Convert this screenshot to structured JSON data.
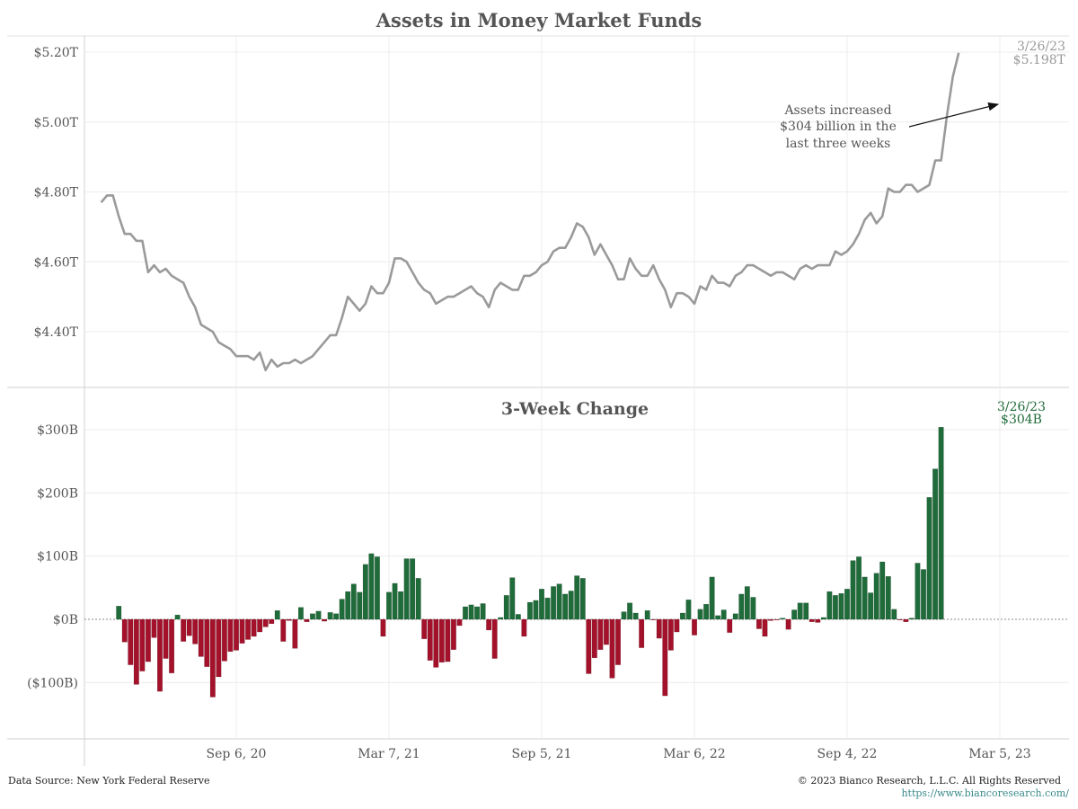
{
  "footer": {
    "source": "Data Source: New York Federal Reserve",
    "copyright": "© 2023 Bianco Research, L.L.C. All Rights Reserved",
    "url": "https://www.biancoresearch.com/"
  },
  "colors": {
    "line": "#9a9a9a",
    "positive": "#1f6b3a",
    "negative": "#a3122a",
    "grid": "#ececec",
    "axis": "#cccccc"
  },
  "chart_data": [
    {
      "type": "line",
      "title": "Assets in Money Market Funds",
      "ylabel": "",
      "ylim": [
        4.27,
        5.24
      ],
      "yticks": [
        4.4,
        4.6,
        4.8,
        5.0,
        5.2
      ],
      "ytick_labels": [
        "$4.40T",
        "$4.60T",
        "$4.80T",
        "$5.00T",
        "$5.20T"
      ],
      "grid": true,
      "start_date": "2020-03-29",
      "freq": "weekly",
      "values": [
        4.77,
        4.79,
        4.79,
        4.73,
        4.68,
        4.68,
        4.66,
        4.66,
        4.57,
        4.59,
        4.57,
        4.58,
        4.56,
        4.55,
        4.54,
        4.5,
        4.47,
        4.42,
        4.41,
        4.4,
        4.37,
        4.36,
        4.35,
        4.33,
        4.33,
        4.33,
        4.32,
        4.34,
        4.29,
        4.32,
        4.3,
        4.31,
        4.31,
        4.32,
        4.31,
        4.32,
        4.33,
        4.35,
        4.37,
        4.39,
        4.39,
        4.44,
        4.5,
        4.48,
        4.46,
        4.48,
        4.53,
        4.51,
        4.51,
        4.54,
        4.61,
        4.61,
        4.6,
        4.57,
        4.54,
        4.52,
        4.51,
        4.48,
        4.49,
        4.5,
        4.5,
        4.51,
        4.52,
        4.53,
        4.51,
        4.5,
        4.47,
        4.52,
        4.54,
        4.53,
        4.52,
        4.52,
        4.56,
        4.56,
        4.57,
        4.59,
        4.6,
        4.63,
        4.64,
        4.64,
        4.67,
        4.71,
        4.7,
        4.67,
        4.62,
        4.65,
        4.62,
        4.59,
        4.55,
        4.55,
        4.61,
        4.58,
        4.56,
        4.56,
        4.59,
        4.55,
        4.52,
        4.47,
        4.51,
        4.51,
        4.5,
        4.48,
        4.53,
        4.52,
        4.56,
        4.54,
        4.54,
        4.53,
        4.56,
        4.57,
        4.59,
        4.59,
        4.58,
        4.57,
        4.56,
        4.57,
        4.57,
        4.56,
        4.55,
        4.58,
        4.59,
        4.58,
        4.59,
        4.59,
        4.59,
        4.63,
        4.62,
        4.63,
        4.65,
        4.68,
        4.72,
        4.74,
        4.71,
        4.73,
        4.81,
        4.8,
        4.8,
        4.82,
        4.82,
        4.8,
        4.81,
        4.82,
        4.89,
        4.89,
        5.02,
        5.13,
        5.198
      ],
      "xtick_labels": [
        "Sep 6, 20",
        "Mar 7, 21",
        "Sep 5, 21",
        "Mar 6, 22",
        "Sep 4, 22",
        "Mar 5, 23"
      ],
      "xtick_dates": [
        "2020-09-06",
        "2021-03-07",
        "2021-09-05",
        "2022-03-06",
        "2022-09-04",
        "2023-03-05"
      ],
      "end_label_date": "3/26/23",
      "end_label_value": "$5.198T",
      "annotation": [
        "Assets increased",
        "$304 billion in the",
        "last three weeks"
      ]
    },
    {
      "type": "bar",
      "title": "3-Week Change",
      "ylim": [
        -145,
        350
      ],
      "yticks": [
        -100,
        0,
        100,
        200,
        300
      ],
      "ytick_labels": [
        "($100B)",
        "$0B",
        "$100B",
        "$200B",
        "$300B"
      ],
      "grid": true,
      "start_date": "2020-04-19",
      "freq": "weekly",
      "values": [
        21,
        -36,
        -72,
        -103,
        -82,
        -67,
        -29,
        -114,
        -62,
        -85,
        7,
        -35,
        -26,
        -39,
        -59,
        -75,
        -123,
        -91,
        -66,
        -51,
        -49,
        -38,
        -32,
        -27,
        -20,
        -12,
        -7,
        14,
        -35,
        -2,
        -46,
        19,
        -4,
        9,
        13,
        -3,
        11,
        9,
        32,
        44,
        56,
        43,
        87,
        104,
        99,
        -27,
        43,
        57,
        44,
        96,
        96,
        65,
        -31,
        -65,
        -76,
        -68,
        -67,
        -48,
        -10,
        20,
        23,
        20,
        25,
        -17,
        -62,
        3,
        38,
        66,
        8,
        -27,
        27,
        30,
        48,
        34,
        52,
        56,
        40,
        45,
        69,
        65,
        -86,
        -61,
        -48,
        -40,
        -93,
        -72,
        12,
        26,
        10,
        -45,
        14,
        -1,
        -30,
        -121,
        -49,
        -20,
        10,
        31,
        -25,
        16,
        24,
        67,
        6,
        15,
        -21,
        9,
        40,
        52,
        35,
        -15,
        -27,
        -2,
        -1,
        2,
        -16,
        15,
        26,
        26,
        -4,
        -5,
        3,
        44,
        38,
        41,
        48,
        93,
        99,
        67,
        42,
        73,
        91,
        68,
        16,
        -1,
        -4,
        2,
        89,
        79,
        193,
        238,
        304
      ],
      "end_label_date": "3/26/23",
      "end_label_value": "$304B"
    }
  ]
}
